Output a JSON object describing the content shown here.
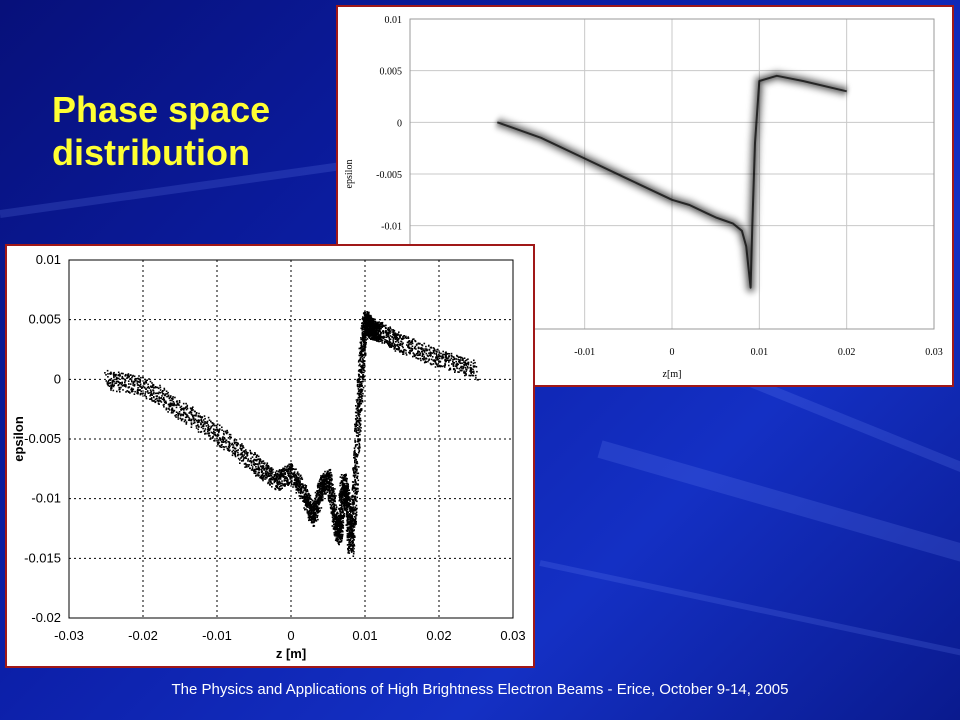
{
  "slide": {
    "title_line1": "Phase space",
    "title_line2": "distribution",
    "footer": "The Physics and Applications of High Brightness Electron Beams - Erice, October 9-14, 2005"
  },
  "colors": {
    "title": "#ffff33",
    "background": "#0c1fa8",
    "frame": "#a01818"
  },
  "chart_data": [
    {
      "type": "scatter",
      "xlabel": "z [m]",
      "ylabel": "epsilon",
      "xlim": [
        -0.03,
        0.03
      ],
      "ylim": [
        -0.02,
        0.01
      ],
      "x_ticks": [
        "-0.03",
        "-0.02",
        "-0.01",
        "0",
        "0.01",
        "0.02",
        "0.03"
      ],
      "y_ticks": [
        "0.01",
        "0.005",
        "0",
        "-0.005",
        "-0.01",
        "-0.015",
        "-0.02"
      ],
      "grid": true,
      "series": [
        {
          "x": [
            -0.025,
            -0.02,
            -0.015,
            -0.01,
            -0.005,
            -0.002,
            0,
            0.002,
            0.003,
            0.004,
            0.005,
            0.006,
            0.0065,
            0.007,
            0.0075,
            0.008,
            0.0085,
            0.009,
            0.0095,
            0.01,
            0.0105,
            0.011,
            0.012,
            0.015,
            0.02,
            0.025
          ],
          "y": [
            0,
            -0.0005,
            -0.0025,
            -0.0045,
            -0.007,
            -0.0085,
            -0.0078,
            -0.01,
            -0.0115,
            -0.009,
            -0.0082,
            -0.012,
            -0.013,
            -0.0085,
            -0.01,
            -0.014,
            -0.01,
            -0.003,
            0.002,
            0.005,
            0.0045,
            0.0042,
            0.004,
            0.003,
            0.0018,
            0.0008
          ]
        }
      ]
    },
    {
      "type": "area",
      "xlabel": "z[m]",
      "ylabel": "epsilon",
      "xlim": [
        -0.03,
        0.03
      ],
      "ylim": [
        -0.02,
        0.01
      ],
      "x_ticks": [
        "-0.01",
        "0",
        "0.01",
        "0.02",
        "0.03"
      ],
      "y_ticks": [
        "0.01",
        "0.005",
        "0",
        "-0.005",
        "-0.01"
      ],
      "grid": true,
      "series": [
        {
          "x": [
            -0.02,
            -0.015,
            -0.01,
            -0.005,
            0,
            0.002,
            0.004,
            0.005,
            0.006,
            0.007,
            0.008,
            0.0085,
            0.009,
            0.0092,
            0.0095,
            0.01,
            0.012,
            0.015,
            0.02
          ],
          "y": [
            0,
            -0.0015,
            -0.0035,
            -0.0055,
            -0.0075,
            -0.008,
            -0.0088,
            -0.0092,
            -0.0095,
            -0.0098,
            -0.0105,
            -0.012,
            -0.016,
            -0.01,
            -0.002,
            0.004,
            0.0045,
            0.004,
            0.003
          ]
        }
      ]
    }
  ]
}
